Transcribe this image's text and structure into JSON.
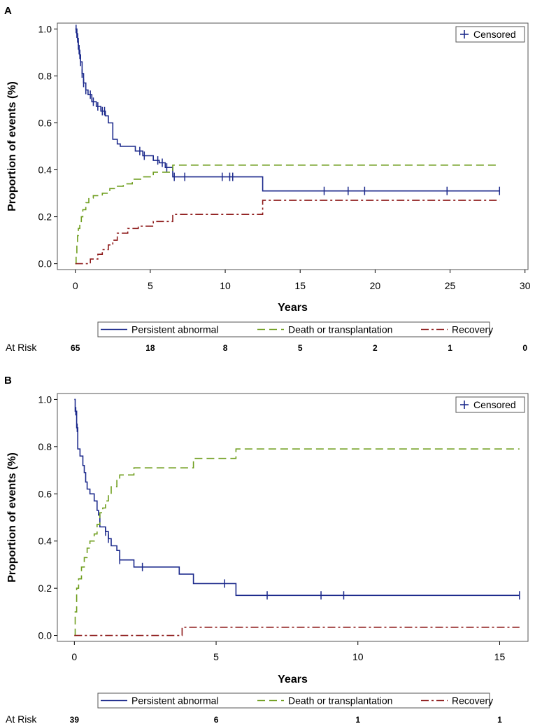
{
  "colors": {
    "persistent": "#1c2a8c",
    "death": "#6f9e1e",
    "recovery": "#8e1b1b",
    "frame": "#555555"
  },
  "chart_data": [
    {
      "panel_label": "A",
      "type": "line",
      "subtype": "step",
      "xlabel": "Years",
      "ylabel": "Proportion of events (%)",
      "xlim": [
        -1.2,
        30.2
      ],
      "ylim": [
        -0.025,
        1.025
      ],
      "xticks": [
        0,
        5,
        10,
        15,
        20,
        25,
        30
      ],
      "xtick_labels": [
        "0",
        "5",
        "10",
        "15",
        "20",
        "25",
        "30"
      ],
      "yticks": [
        0.0,
        0.2,
        0.4,
        0.6,
        0.8,
        1.0
      ],
      "ytick_labels": [
        "0.0",
        "0.2",
        "0.4",
        "0.6",
        "0.8",
        "1.0"
      ],
      "censored_legend": "Censored",
      "legend": [
        "Persistent abnormal",
        "Death or transplantation",
        "Recovery"
      ],
      "series": [
        {
          "name": "Persistent abnormal",
          "style": "solid",
          "color_key": "persistent",
          "steps": [
            [
              0,
              1.0
            ],
            [
              0.1,
              0.98
            ],
            [
              0.15,
              0.96
            ],
            [
              0.2,
              0.93
            ],
            [
              0.25,
              0.91
            ],
            [
              0.3,
              0.89
            ],
            [
              0.35,
              0.86
            ],
            [
              0.45,
              0.81
            ],
            [
              0.55,
              0.77
            ],
            [
              0.7,
              0.74
            ],
            [
              0.85,
              0.72
            ],
            [
              1.1,
              0.69
            ],
            [
              1.4,
              0.67
            ],
            [
              1.7,
              0.65
            ],
            [
              2.0,
              0.63
            ],
            [
              2.2,
              0.6
            ],
            [
              2.5,
              0.53
            ],
            [
              2.8,
              0.51
            ],
            [
              3.0,
              0.5
            ],
            [
              4.0,
              0.48
            ],
            [
              4.5,
              0.46
            ],
            [
              5.2,
              0.44
            ],
            [
              5.6,
              0.43
            ],
            [
              6.0,
              0.41
            ],
            [
              6.5,
              0.37
            ],
            [
              12.5,
              0.31
            ],
            [
              28.3,
              0.31
            ]
          ],
          "censor_x": [
            0.05,
            0.1,
            0.15,
            0.2,
            0.25,
            0.3,
            0.35,
            0.45,
            0.55,
            0.7,
            1.0,
            1.2,
            1.5,
            1.8,
            1.95,
            4.3,
            4.6,
            5.5,
            5.8,
            6.1,
            6.6,
            7.3,
            9.8,
            10.3,
            10.5,
            16.6,
            18.2,
            19.3,
            24.8,
            28.3
          ]
        },
        {
          "name": "Death or transplantation",
          "style": "dash",
          "color_key": "death",
          "steps": [
            [
              0,
              0.0
            ],
            [
              0.05,
              0.03
            ],
            [
              0.1,
              0.08
            ],
            [
              0.15,
              0.12
            ],
            [
              0.2,
              0.15
            ],
            [
              0.3,
              0.18
            ],
            [
              0.4,
              0.2
            ],
            [
              0.5,
              0.23
            ],
            [
              0.7,
              0.26
            ],
            [
              0.9,
              0.28
            ],
            [
              1.2,
              0.29
            ],
            [
              1.8,
              0.3
            ],
            [
              2.3,
              0.32
            ],
            [
              2.7,
              0.33
            ],
            [
              3.2,
              0.34
            ],
            [
              3.8,
              0.36
            ],
            [
              4.5,
              0.37
            ],
            [
              5.2,
              0.39
            ],
            [
              6.5,
              0.42
            ],
            [
              28.3,
              0.42
            ]
          ]
        },
        {
          "name": "Recovery",
          "style": "dashdot",
          "color_key": "recovery",
          "steps": [
            [
              0,
              0.0
            ],
            [
              1.0,
              0.02
            ],
            [
              1.5,
              0.04
            ],
            [
              1.8,
              0.06
            ],
            [
              2.2,
              0.08
            ],
            [
              2.5,
              0.1
            ],
            [
              2.8,
              0.13
            ],
            [
              3.5,
              0.15
            ],
            [
              4.2,
              0.16
            ],
            [
              5.2,
              0.18
            ],
            [
              6.5,
              0.21
            ],
            [
              12.5,
              0.27
            ],
            [
              28.3,
              0.27
            ]
          ]
        }
      ],
      "at_risk_label": "At Risk",
      "at_risk": [
        "65",
        "18",
        "8",
        "5",
        "2",
        "1",
        "0"
      ]
    },
    {
      "panel_label": "B",
      "type": "line",
      "subtype": "step",
      "xlabel": "Years",
      "ylabel": "Proportion of events (%)",
      "xlim": [
        -0.6,
        16.0
      ],
      "ylim": [
        -0.025,
        1.025
      ],
      "xticks": [
        0,
        5,
        10,
        15
      ],
      "xtick_labels": [
        "0",
        "5",
        "10",
        "15"
      ],
      "yticks": [
        0.0,
        0.2,
        0.4,
        0.6,
        0.8,
        1.0
      ],
      "ytick_labels": [
        "0.0",
        "0.2",
        "0.4",
        "0.6",
        "0.8",
        "1.0"
      ],
      "censored_legend": "Censored",
      "legend": [
        "Persistent abnormal",
        "Death or transplantation",
        "Recovery"
      ],
      "series": [
        {
          "name": "Persistent abnormal",
          "style": "solid",
          "color_key": "persistent",
          "steps": [
            [
              0,
              1.0
            ],
            [
              0.03,
              0.95
            ],
            [
              0.08,
              0.88
            ],
            [
              0.12,
              0.79
            ],
            [
              0.2,
              0.76
            ],
            [
              0.3,
              0.72
            ],
            [
              0.35,
              0.69
            ],
            [
              0.4,
              0.65
            ],
            [
              0.45,
              0.62
            ],
            [
              0.55,
              0.6
            ],
            [
              0.7,
              0.57
            ],
            [
              0.8,
              0.53
            ],
            [
              0.85,
              0.51
            ],
            [
              0.9,
              0.46
            ],
            [
              1.1,
              0.44
            ],
            [
              1.2,
              0.41
            ],
            [
              1.3,
              0.38
            ],
            [
              1.5,
              0.36
            ],
            [
              1.6,
              0.32
            ],
            [
              2.1,
              0.29
            ],
            [
              3.7,
              0.26
            ],
            [
              4.2,
              0.22
            ],
            [
              5.7,
              0.17
            ],
            [
              15.7,
              0.17
            ]
          ],
          "censor_x": [
            0.05,
            0.1,
            1.1,
            1.2,
            1.6,
            2.4,
            5.3,
            6.8,
            8.7,
            9.5,
            15.7
          ]
        },
        {
          "name": "Death or transplantation",
          "style": "dash",
          "color_key": "death",
          "steps": [
            [
              0,
              0.0
            ],
            [
              0.03,
              0.1
            ],
            [
              0.08,
              0.2
            ],
            [
              0.15,
              0.24
            ],
            [
              0.25,
              0.29
            ],
            [
              0.35,
              0.33
            ],
            [
              0.45,
              0.37
            ],
            [
              0.55,
              0.4
            ],
            [
              0.7,
              0.43
            ],
            [
              0.8,
              0.47
            ],
            [
              0.9,
              0.52
            ],
            [
              1.0,
              0.54
            ],
            [
              1.1,
              0.57
            ],
            [
              1.2,
              0.6
            ],
            [
              1.3,
              0.63
            ],
            [
              1.5,
              0.66
            ],
            [
              1.6,
              0.68
            ],
            [
              2.1,
              0.71
            ],
            [
              4.2,
              0.75
            ],
            [
              5.7,
              0.79
            ],
            [
              15.7,
              0.79
            ]
          ]
        },
        {
          "name": "Recovery",
          "style": "dashdot",
          "color_key": "recovery",
          "steps": [
            [
              0,
              0.0
            ],
            [
              3.8,
              0.035
            ],
            [
              15.7,
              0.035
            ]
          ]
        }
      ],
      "at_risk_label": "At Risk",
      "at_risk": [
        "39",
        "6",
        "1",
        "1"
      ]
    }
  ]
}
